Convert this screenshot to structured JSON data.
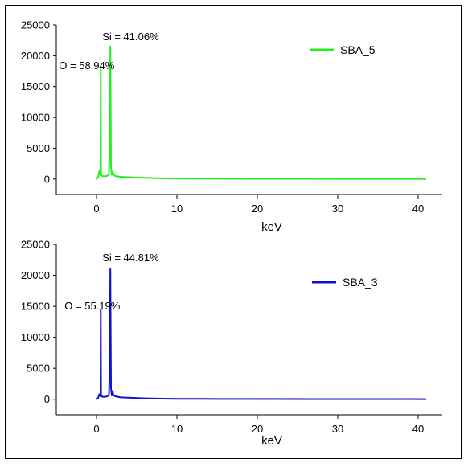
{
  "chart_data": [
    {
      "type": "line",
      "title": "",
      "xlabel": "keV",
      "ylabel": "",
      "xlim": [
        -5,
        43
      ],
      "ylim": [
        -2500,
        25000
      ],
      "x_ticks": [
        0,
        10,
        20,
        30,
        40
      ],
      "y_ticks": [
        0,
        5000,
        10000,
        15000,
        20000,
        25000
      ],
      "grid": false,
      "legend_position": "top-right",
      "color": "#22ee22",
      "series": [
        {
          "name": "SBA_5",
          "points": [
            [
              0.0,
              0
            ],
            [
              0.2,
              300
            ],
            [
              0.35,
              1300
            ],
            [
              0.45,
              800
            ],
            [
              0.5,
              600
            ],
            [
              0.53,
              17800
            ],
            [
              0.56,
              900
            ],
            [
              0.7,
              500
            ],
            [
              1.0,
              450
            ],
            [
              1.3,
              500
            ],
            [
              1.55,
              800
            ],
            [
              1.65,
              6500
            ],
            [
              1.72,
              21500
            ],
            [
              1.76,
              12000
            ],
            [
              1.8,
              2000
            ],
            [
              1.9,
              700
            ],
            [
              2.0,
              1200
            ],
            [
              2.1,
              800
            ],
            [
              2.3,
              500
            ],
            [
              3.0,
              350
            ],
            [
              4.0,
              300
            ],
            [
              6.0,
              200
            ],
            [
              8.0,
              120
            ],
            [
              10.0,
              80
            ],
            [
              15.0,
              50
            ],
            [
              20.0,
              40
            ],
            [
              30.0,
              30
            ],
            [
              41.0,
              20
            ]
          ]
        }
      ],
      "annotations": [
        {
          "text": "O = 58.94%",
          "x": 0.53,
          "y": 17800
        },
        {
          "text": "Si = 41.06%",
          "x": 1.72,
          "y": 21500
        }
      ]
    },
    {
      "type": "line",
      "title": "",
      "xlabel": "keV",
      "ylabel": "",
      "xlim": [
        -5,
        43
      ],
      "ylim": [
        -2500,
        25000
      ],
      "x_ticks": [
        0,
        10,
        20,
        30,
        40
      ],
      "y_ticks": [
        0,
        5000,
        10000,
        15000,
        20000,
        25000
      ],
      "grid": false,
      "legend_position": "top-right",
      "color": "#1010cc",
      "series": [
        {
          "name": "SBA_3",
          "points": [
            [
              0.0,
              0
            ],
            [
              0.2,
              200
            ],
            [
              0.35,
              800
            ],
            [
              0.45,
              600
            ],
            [
              0.5,
              500
            ],
            [
              0.53,
              14500
            ],
            [
              0.56,
              700
            ],
            [
              0.7,
              400
            ],
            [
              1.0,
              400
            ],
            [
              1.3,
              450
            ],
            [
              1.55,
              700
            ],
            [
              1.65,
              6000
            ],
            [
              1.72,
              21000
            ],
            [
              1.76,
              11000
            ],
            [
              1.8,
              1800
            ],
            [
              1.9,
              600
            ],
            [
              2.0,
              1300
            ],
            [
              2.1,
              700
            ],
            [
              2.3,
              500
            ],
            [
              3.0,
              300
            ],
            [
              4.0,
              250
            ],
            [
              6.0,
              150
            ],
            [
              8.0,
              100
            ],
            [
              10.0,
              70
            ],
            [
              15.0,
              50
            ],
            [
              20.0,
              40
            ],
            [
              30.0,
              30
            ],
            [
              41.0,
              20
            ]
          ]
        }
      ],
      "annotations": [
        {
          "text": "O = 55.19%",
          "x": 0.53,
          "y": 14500
        },
        {
          "text": "Si = 44.81%",
          "x": 1.72,
          "y": 21000
        }
      ]
    }
  ]
}
